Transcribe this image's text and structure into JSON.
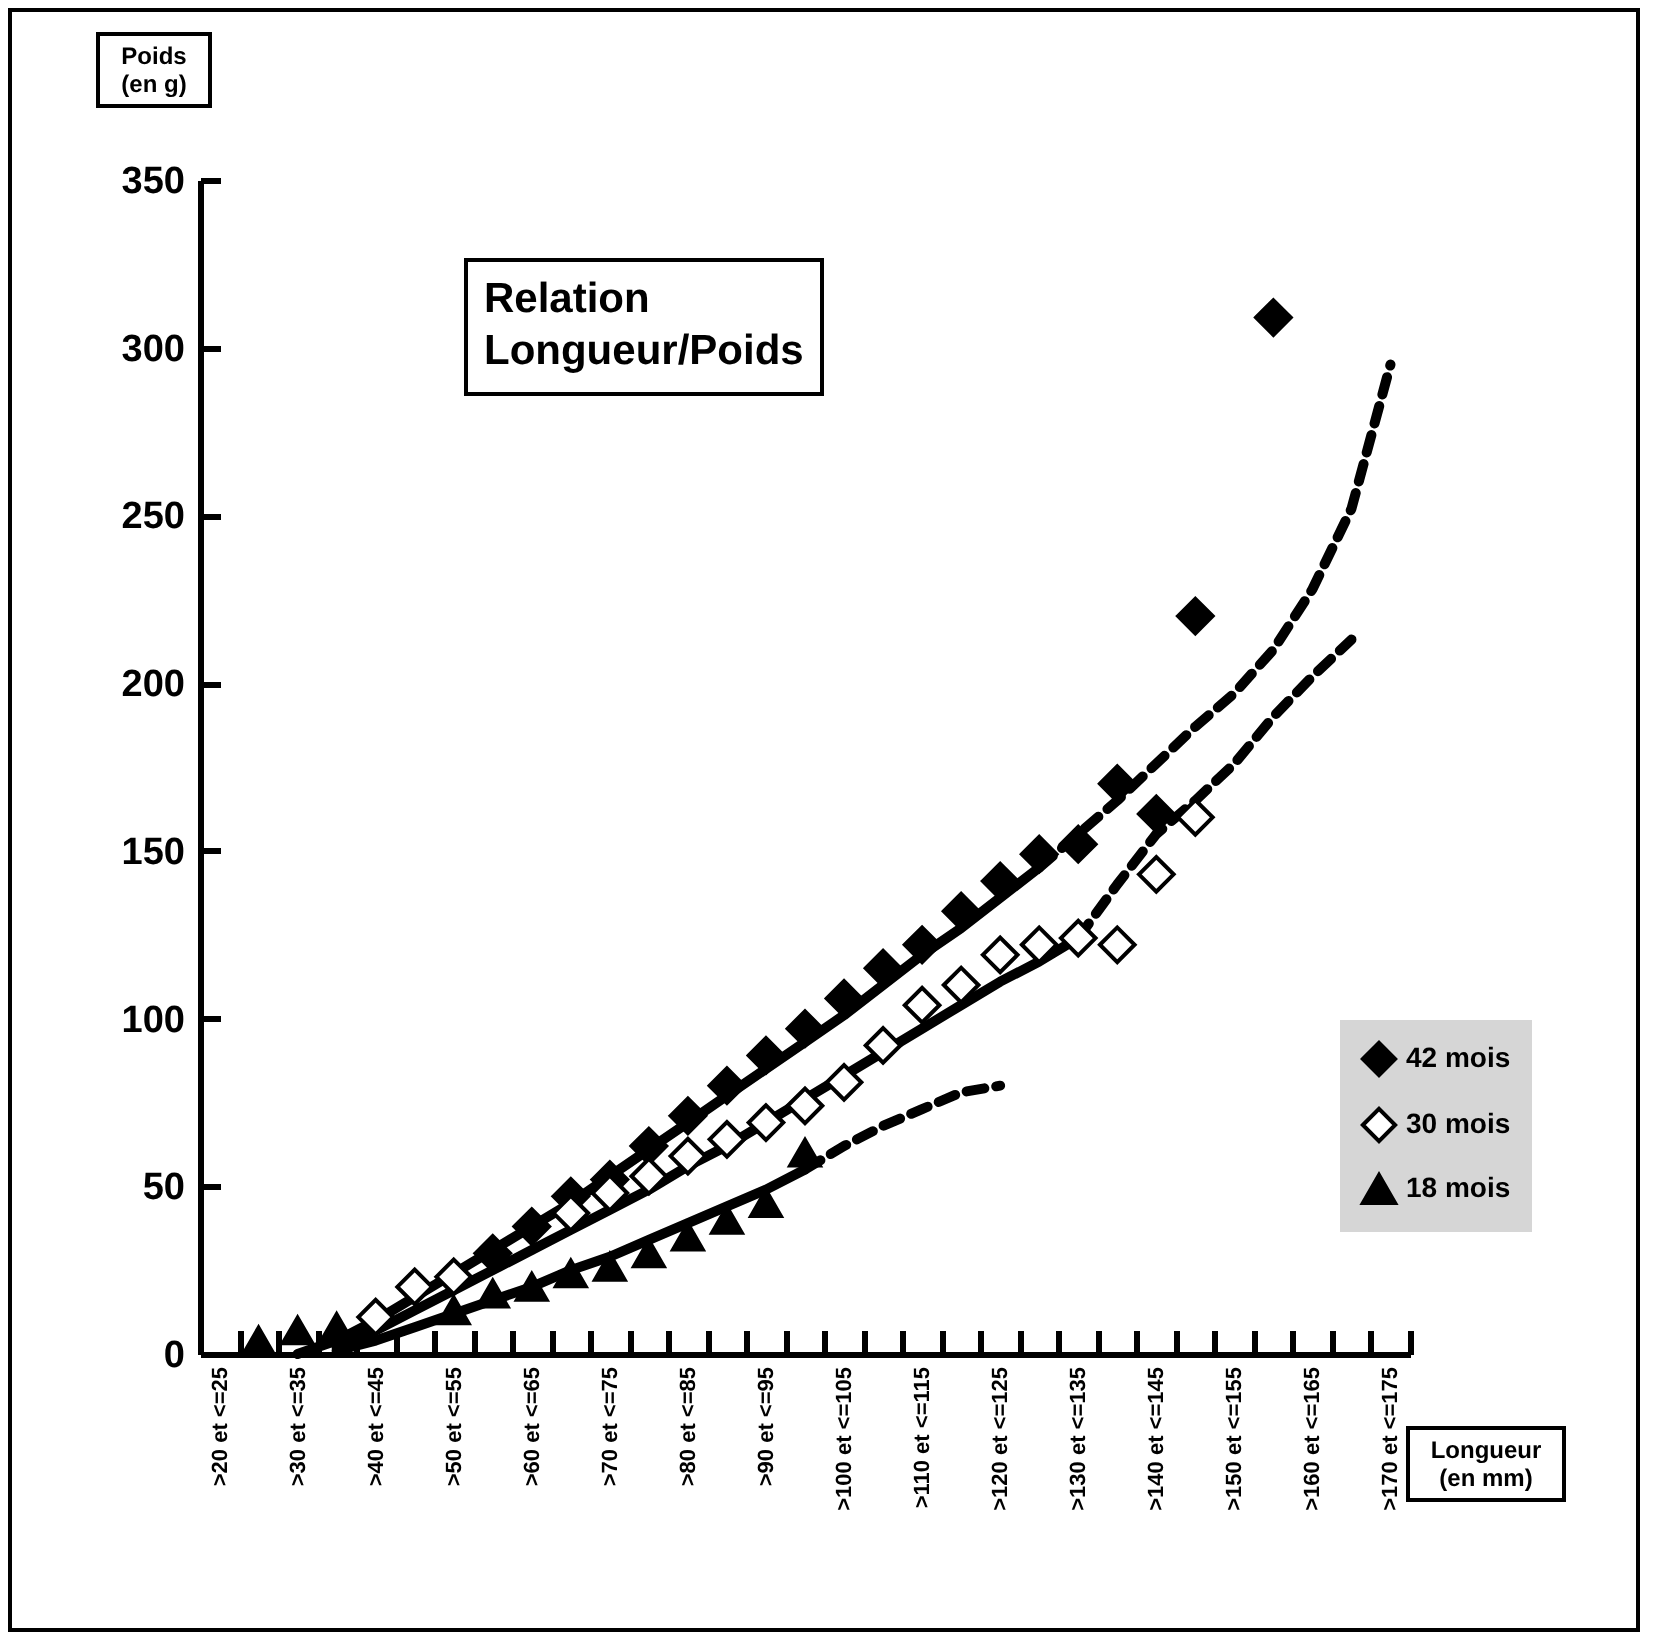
{
  "chart_data": {
    "type": "scatter",
    "title": "Relation Longueur/Poids",
    "xlabel": "Longueur (en mm)",
    "ylabel": "Poids (en g)",
    "categories": [
      ">20 et <=25",
      null,
      ">30 et <=35",
      null,
      ">40 et <=45",
      null,
      ">50 et <=55",
      null,
      ">60 et <=65",
      null,
      ">70 et <=75",
      null,
      ">80 et <=85",
      null,
      ">90 et <=95",
      null,
      ">100 et <=105",
      null,
      ">110 et <=115",
      null,
      ">120 et <=125",
      null,
      ">130 et <=135",
      null,
      ">140 et <=145",
      null,
      ">150 et <=155",
      null,
      ">160 et <=165",
      null,
      ">170 et <=175"
    ],
    "ylim": [
      0,
      350
    ],
    "yticks": [
      0,
      50,
      100,
      150,
      200,
      250,
      300,
      350
    ],
    "grid": false,
    "legend": "right",
    "series": [
      {
        "type": "line",
        "color": "#000000",
        "line_style": "solid",
        "marker": "none",
        "values": [
          null,
          null,
          0,
          4,
          10,
          17,
          24,
          31,
          38,
          45,
          53,
          61,
          69,
          77,
          85,
          93,
          101,
          110,
          119,
          127,
          136,
          145,
          null,
          null,
          null,
          null,
          null,
          null,
          null,
          null,
          null
        ]
      },
      {
        "type": "line",
        "color": "#000000",
        "line_style": "dashed",
        "marker": "none",
        "values": [
          null,
          null,
          null,
          null,
          null,
          null,
          null,
          null,
          null,
          null,
          null,
          null,
          null,
          null,
          null,
          null,
          null,
          null,
          null,
          null,
          null,
          145,
          155,
          165,
          176,
          187,
          197,
          210,
          228,
          252,
          295
        ]
      },
      {
        "type": "line",
        "color": "#000000",
        "line_style": "solid",
        "marker": "none",
        "values": [
          null,
          null,
          null,
          2,
          7,
          13,
          19,
          25,
          31,
          37,
          43,
          49,
          56,
          62,
          69,
          76,
          83,
          90,
          97,
          104,
          111,
          117,
          124,
          null,
          null,
          null,
          null,
          null,
          null,
          null,
          null
        ]
      },
      {
        "type": "line",
        "color": "#000000",
        "line_style": "dashed",
        "marker": "none",
        "values": [
          null,
          null,
          null,
          null,
          null,
          null,
          null,
          null,
          null,
          null,
          null,
          null,
          null,
          null,
          null,
          null,
          null,
          null,
          null,
          null,
          null,
          null,
          124,
          140,
          155,
          165,
          176,
          190,
          202,
          213,
          null
        ]
      },
      {
        "type": "line",
        "color": "#000000",
        "line_style": "solid",
        "marker": "none",
        "values": [
          null,
          null,
          null,
          1,
          4,
          8,
          12,
          16,
          20,
          25,
          29,
          34,
          39,
          44,
          49,
          55,
          null,
          null,
          null,
          null,
          null,
          null,
          null,
          null,
          null,
          null,
          null,
          null,
          null,
          null,
          null
        ]
      },
      {
        "type": "line",
        "color": "#000000",
        "line_style": "dashed",
        "marker": "none",
        "values": [
          null,
          null,
          null,
          null,
          null,
          null,
          null,
          null,
          null,
          null,
          null,
          null,
          null,
          null,
          null,
          55,
          62,
          68,
          73,
          78,
          80,
          null,
          null,
          null,
          null,
          null,
          null,
          null,
          null,
          null,
          null
        ]
      },
      {
        "name": "42 mois",
        "color": "#000000",
        "marker": "diamond",
        "values": [
          null,
          null,
          null,
          null,
          null,
          null,
          null,
          30,
          38,
          47,
          52,
          62,
          71,
          80,
          89,
          97,
          106,
          115,
          122,
          132,
          141,
          149,
          152,
          170,
          161,
          220,
          null,
          309,
          null,
          null,
          null
        ]
      },
      {
        "name": "30 mois",
        "color": "#ffffff",
        "marker": "diamond",
        "values": [
          null,
          null,
          null,
          null,
          11,
          20,
          23,
          null,
          null,
          42,
          48,
          53,
          59,
          64,
          69,
          74,
          81,
          92,
          104,
          110,
          119,
          122,
          124,
          122,
          143,
          160,
          null,
          null,
          null,
          null,
          null
        ]
      },
      {
        "name": "18 mois",
        "color": "#000000",
        "marker": "triangle",
        "values": [
          null,
          4,
          7,
          8,
          null,
          null,
          13,
          18,
          20,
          24,
          26,
          30,
          35,
          40,
          45,
          60,
          null,
          null,
          null,
          null,
          null,
          null,
          null,
          null,
          null,
          null,
          null,
          null,
          null,
          null,
          null
        ]
      }
    ]
  }
}
